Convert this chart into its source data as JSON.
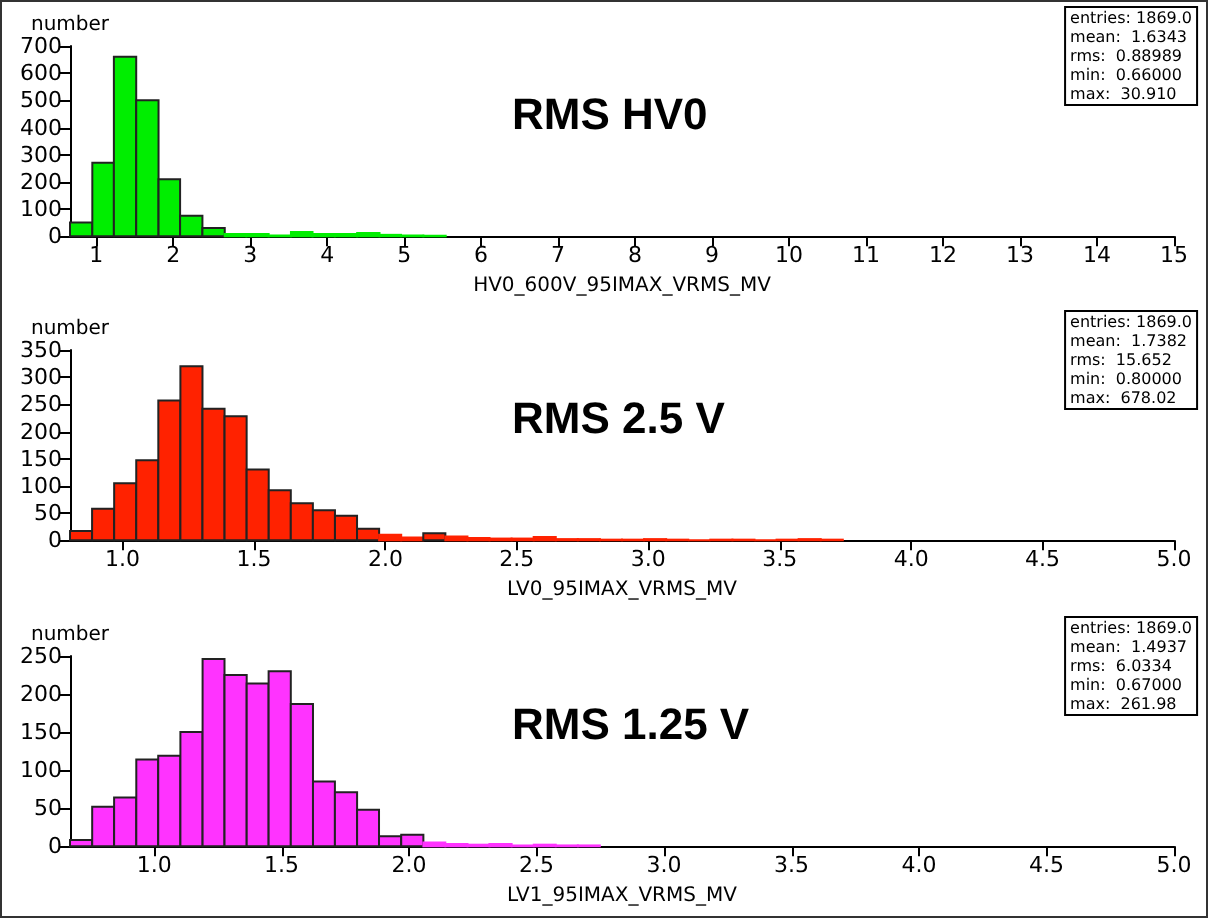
{
  "chart_data": [
    {
      "type": "histogram",
      "title": "RMS HV0",
      "xlabel": "HV0_600V_95IMAX_VRMS_MV",
      "ylabel": "number",
      "color": "#00ee00",
      "annotations": [
        "entries: 1869.0",
        "mean:  1.6343",
        "rms:  0.88989",
        "min:  0.66000",
        "max:  30.910"
      ],
      "bins": [
        0.66,
        0.95,
        1.23,
        1.52,
        1.81,
        2.09,
        2.38,
        2.67,
        2.95,
        3.24,
        3.53,
        3.81,
        4.1,
        4.39,
        4.68,
        4.96,
        5.25,
        5.54
      ],
      "values": [
        50,
        270,
        660,
        500,
        210,
        75,
        30,
        8,
        8,
        3,
        15,
        8,
        8,
        12,
        5,
        3,
        2
      ],
      "xlim": [
        0.66,
        15
      ],
      "xticks": [
        1,
        2,
        3,
        4,
        5,
        6,
        7,
        8,
        9,
        10,
        11,
        12,
        13,
        14,
        15
      ],
      "ylim": [
        0,
        700
      ],
      "yticks": [
        0,
        100,
        200,
        300,
        400,
        500,
        600,
        700
      ]
    },
    {
      "type": "histogram",
      "title": "RMS 2.5 V",
      "xlabel": "LV0_95IMAX_VRMS_MV",
      "ylabel": "number",
      "color": "#ff2200",
      "annotations": [
        "entries: 1869.0",
        "mean:  1.7382",
        "rms:  15.652",
        "min:  0.80000",
        "max:  678.02"
      ],
      "bins": [
        0.8,
        0.884,
        0.968,
        1.052,
        1.136,
        1.22,
        1.304,
        1.388,
        1.472,
        1.556,
        1.64,
        1.724,
        1.808,
        1.892,
        1.976,
        2.06,
        2.144,
        2.228,
        2.312,
        2.396,
        2.48,
        2.564,
        2.648,
        2.732,
        2.816,
        2.9,
        2.984,
        3.068,
        3.152,
        3.236,
        3.32,
        3.404,
        3.488,
        3.572,
        3.656,
        3.74
      ],
      "values": [
        17,
        58,
        105,
        147,
        257,
        320,
        242,
        228,
        130,
        92,
        68,
        55,
        45,
        21,
        10,
        5,
        13,
        7,
        4,
        3,
        3,
        6,
        2,
        2,
        1,
        1,
        2,
        1,
        0,
        1,
        1,
        0,
        1,
        2,
        1
      ],
      "xlim": [
        0.8,
        5.0
      ],
      "xticks": [
        {
          "value": 1,
          "label": "1.0"
        },
        1.5,
        {
          "value": 2,
          "label": "2.0"
        },
        2.5,
        {
          "value": 3,
          "label": "3.0"
        },
        3.5,
        {
          "value": 4,
          "label": "4.0"
        },
        4.5,
        {
          "value": 5,
          "label": "5.0"
        }
      ],
      "ylim": [
        0,
        350
      ],
      "yticks": [
        0,
        50,
        100,
        150,
        200,
        250,
        300,
        350
      ]
    },
    {
      "type": "histogram",
      "title": "RMS 1.25 V",
      "xlabel": "LV1_95IMAX_VRMS_MV",
      "ylabel": "number",
      "color": "#ff33ff",
      "annotations": [
        "entries: 1869.0",
        "mean:  1.4937",
        "rms:  6.0334",
        "min:  0.67000",
        "max:  261.98"
      ],
      "bins": [
        0.67,
        0.757,
        0.843,
        0.93,
        1.016,
        1.103,
        1.19,
        1.276,
        1.363,
        1.449,
        1.536,
        1.623,
        1.709,
        1.796,
        1.882,
        1.969,
        2.056,
        2.142,
        2.229,
        2.315,
        2.402,
        2.489,
        2.575,
        2.662,
        2.748
      ],
      "values": [
        8,
        52,
        64,
        114,
        119,
        150,
        246,
        225,
        214,
        230,
        187,
        85,
        71,
        48,
        13,
        15,
        5,
        3,
        2,
        3,
        1,
        2,
        1,
        1
      ],
      "xlim": [
        0.67,
        5.0
      ],
      "xticks": [
        {
          "value": 1,
          "label": "1.0"
        },
        1.5,
        {
          "value": 2,
          "label": "2.0"
        },
        2.5,
        {
          "value": 3,
          "label": "3.0"
        },
        3.5,
        {
          "value": 4,
          "label": "4.0"
        },
        4.5,
        {
          "value": 5,
          "label": "5.0"
        }
      ],
      "ylim": [
        0,
        250
      ],
      "yticks": [
        0,
        50,
        100,
        150,
        200,
        250
      ]
    }
  ]
}
